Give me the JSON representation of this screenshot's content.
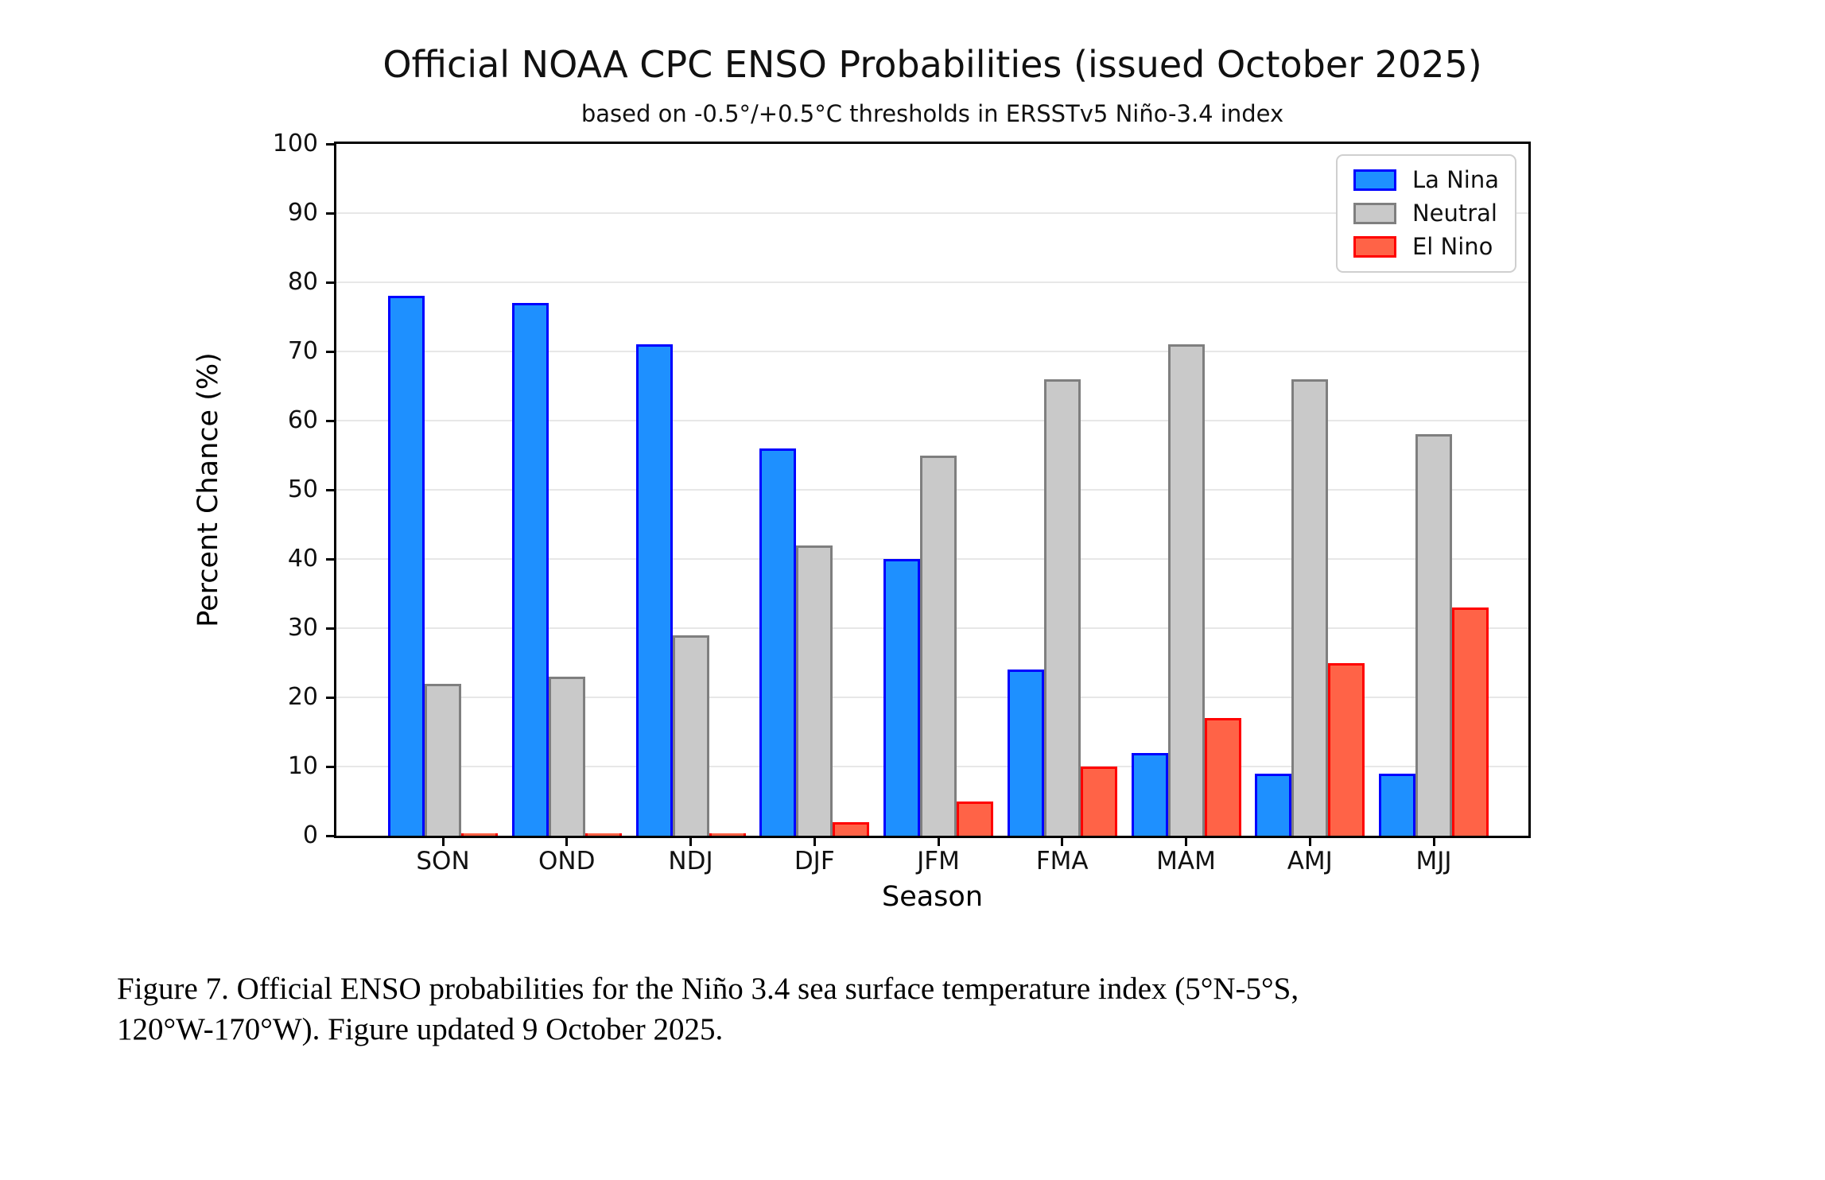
{
  "figure": {
    "title": "Official NOAA CPC ENSO Probabilities (issued October 2025)",
    "subtitle": "based on -0.5°/+0.5°C thresholds in ERSSTv5 Niño-3.4 index"
  },
  "chart_data": {
    "type": "bar",
    "categories": [
      "SON",
      "OND",
      "NDJ",
      "DJF",
      "JFM",
      "FMA",
      "MAM",
      "AMJ",
      "MJJ"
    ],
    "series": [
      {
        "name": "La Nina",
        "fill": "#1E90FF",
        "edge": "#0000FF",
        "values": [
          78,
          77,
          71,
          56,
          40,
          24,
          12,
          9,
          9
        ]
      },
      {
        "name": "Neutral",
        "fill": "#C9C9C9",
        "edge": "#7F7F7F",
        "values": [
          22,
          23,
          29,
          42,
          55,
          66,
          71,
          66,
          58
        ]
      },
      {
        "name": "El Nino",
        "fill": "#FF6347",
        "edge": "#FF0000",
        "values": [
          0,
          0,
          0,
          2,
          5,
          10,
          17,
          25,
          33
        ]
      }
    ],
    "title": "Official NOAA CPC ENSO Probabilities (issued October 2025)",
    "xlabel": "Season",
    "ylabel": "Percent Chance (%)",
    "ylim": [
      0,
      100
    ],
    "ytick_step": 10,
    "grid": "horizontal",
    "legend_position": "upper right"
  },
  "caption": {
    "line1": "Figure 7. Official ENSO probabilities for the Niño 3.4 sea surface temperature index (5°N-5°S,",
    "line2": "120°W-170°W). Figure updated 9 October 2025."
  }
}
